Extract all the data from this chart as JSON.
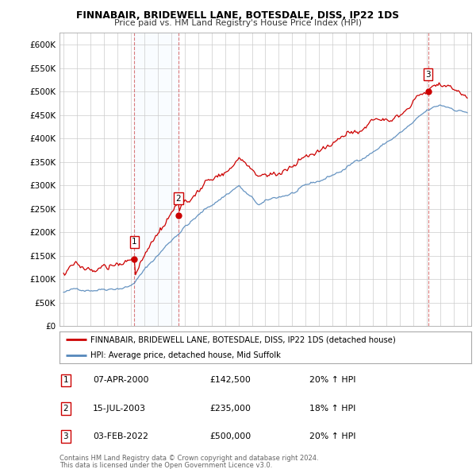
{
  "title1": "FINNABAIR, BRIDEWELL LANE, BOTESDALE, DISS, IP22 1DS",
  "title2": "Price paid vs. HM Land Registry's House Price Index (HPI)",
  "yticks": [
    0,
    50000,
    100000,
    150000,
    200000,
    250000,
    300000,
    350000,
    400000,
    450000,
    500000,
    550000,
    600000
  ],
  "ytick_labels": [
    "£0",
    "£50K",
    "£100K",
    "£150K",
    "£200K",
    "£250K",
    "£300K",
    "£350K",
    "£400K",
    "£450K",
    "£500K",
    "£550K",
    "£600K"
  ],
  "sale_year_nums": [
    2000.27,
    2003.54,
    2022.09
  ],
  "sale_prices": [
    142500,
    235000,
    500000
  ],
  "sale_labels": [
    "1",
    "2",
    "3"
  ],
  "legend_red": "FINNABAIR, BRIDEWELL LANE, BOTESDALE, DISS, IP22 1DS (detached house)",
  "legend_blue": "HPI: Average price, detached house, Mid Suffolk",
  "table_rows": [
    [
      "1",
      "07-APR-2000",
      "£142,500",
      "20% ↑ HPI"
    ],
    [
      "2",
      "15-JUL-2003",
      "£235,000",
      "18% ↑ HPI"
    ],
    [
      "3",
      "03-FEB-2022",
      "£500,000",
      "20% ↑ HPI"
    ]
  ],
  "footnote1": "Contains HM Land Registry data © Crown copyright and database right 2024.",
  "footnote2": "This data is licensed under the Open Government Licence v3.0.",
  "red_color": "#cc0000",
  "blue_color": "#5588bb",
  "shade_color": "#ddeeff",
  "dashed_red_color": "#cc4444",
  "bg_color": "#ffffff",
  "grid_color": "#cccccc"
}
